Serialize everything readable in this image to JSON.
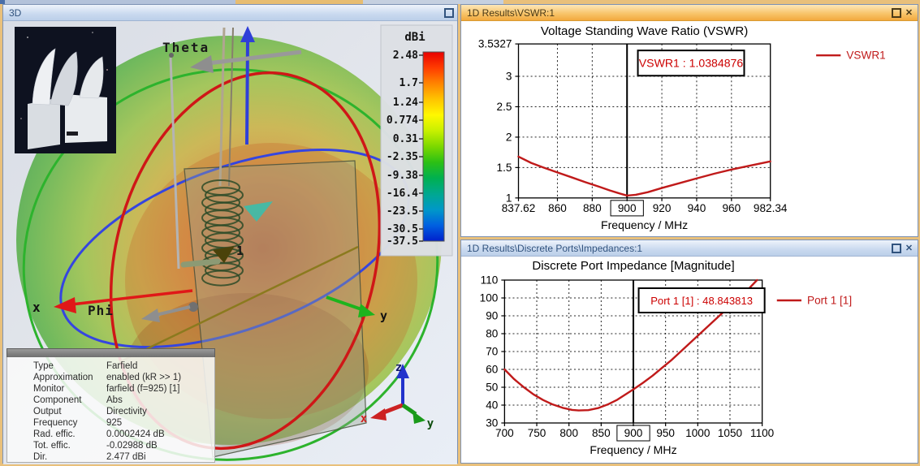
{
  "window": {
    "panel_3d": {
      "title": "3D",
      "colorbar": {
        "unit": "dBi",
        "labels": [
          "2.48",
          "1.7",
          "1.24",
          "0.774",
          "0.31",
          "-2.35",
          "-9.38",
          "-16.4",
          "-23.5",
          "-30.5",
          "-37.5"
        ],
        "gradient": [
          "#e80000",
          "#ff3c00",
          "#ff8400",
          "#ffc400",
          "#fff800",
          "#c8f000",
          "#7cd800",
          "#2cc014",
          "#00b050",
          "#00a890",
          "#0098c8",
          "#0060e0",
          "#0020cc"
        ]
      },
      "axis_labels": {
        "theta": "Theta",
        "phi": "Phi",
        "x": "x",
        "y": "y",
        "triad_z": "z",
        "triad_y": "y",
        "triad_x": "x",
        "port": "1"
      },
      "info": {
        "rows": [
          {
            "label": "Type",
            "value": "Farfield"
          },
          {
            "label": "Approximation",
            "value": "enabled (kR >> 1)"
          },
          {
            "label": "Monitor",
            "value": "farfield (f=925) [1]"
          },
          {
            "label": "Component",
            "value": "Abs"
          },
          {
            "label": "Output",
            "value": "Directivity"
          },
          {
            "label": "Frequency",
            "value": "925"
          },
          {
            "label": "Rad. effic.",
            "value": "0.0002424 dB"
          },
          {
            "label": "Tot. effic.",
            "value": "-0.02988 dB"
          },
          {
            "label": "Dir.",
            "value": "2.477 dBi"
          }
        ]
      }
    },
    "panel_vswr": {
      "title": "1D Results\\VSWR:1"
    },
    "panel_impedance": {
      "title": "1D Results\\Discrete Ports\\Impedances:1"
    }
  },
  "colors": {
    "curve_red": "#c01a1a",
    "annotation_red": "#cc0000",
    "marker_black": "#000000"
  },
  "chart_data": [
    {
      "type": "line",
      "title": "Voltage Standing Wave Ratio (VSWR)",
      "xlabel": "Frequency / MHz",
      "ylabel": "",
      "xlim": [
        837.62,
        982.34
      ],
      "ylim": [
        1,
        3.5327
      ],
      "x_ticks": [
        837.62,
        860,
        880,
        900,
        920,
        940,
        960,
        982.34
      ],
      "x_tick_labels": [
        "837.62",
        "860",
        "880",
        "900",
        "920",
        "940",
        "960",
        "982.34"
      ],
      "boxed_tick": "900",
      "y_ticks": [
        1,
        1.5,
        2,
        2.5,
        3,
        3.5327
      ],
      "y_tick_labels": [
        "1",
        "1.5",
        "2",
        "2.5",
        "3",
        "3.5327"
      ],
      "marker_x": 900,
      "grid": "dashed",
      "legend_position": "right",
      "annotation": "VSWR1 : 1.0384876",
      "series": [
        {
          "name": "VSWR1",
          "x": [
            837.62,
            845,
            852,
            860,
            868,
            876,
            884,
            890,
            895,
            900,
            905,
            912,
            920,
            930,
            940,
            950,
            960,
            970,
            982.34
          ],
          "y": [
            1.68,
            1.575,
            1.5,
            1.42,
            1.34,
            1.26,
            1.185,
            1.125,
            1.08,
            1.0385,
            1.052,
            1.095,
            1.163,
            1.243,
            1.322,
            1.398,
            1.468,
            1.528,
            1.6
          ]
        }
      ]
    },
    {
      "type": "line",
      "title": "Discrete Port Impedance [Magnitude]",
      "xlabel": "Frequency / MHz",
      "ylabel": "",
      "xlim": [
        700,
        1100
      ],
      "ylim": [
        30,
        110
      ],
      "x_ticks": [
        700,
        750,
        800,
        850,
        900,
        950,
        1000,
        1050,
        1100
      ],
      "x_tick_labels": [
        "700",
        "750",
        "800",
        "850",
        "900",
        "950",
        "1000",
        "1050",
        "1100"
      ],
      "boxed_tick": "900",
      "y_ticks": [
        30,
        40,
        50,
        60,
        70,
        80,
        90,
        100,
        110
      ],
      "y_tick_labels": [
        "30",
        "40",
        "50",
        "60",
        "70",
        "80",
        "90",
        "100",
        "110"
      ],
      "marker_x": 900,
      "grid": "dashed",
      "legend_position": "right",
      "annotation": "Port 1 [1] : 48.843813",
      "series": [
        {
          "name": "Port 1 [1]",
          "x": [
            700,
            715,
            730,
            745,
            760,
            775,
            790,
            805,
            815,
            830,
            845,
            860,
            875,
            890,
            900,
            915,
            930,
            945,
            960,
            975,
            990,
            1005,
            1020,
            1035,
            1050,
            1065,
            1080,
            1092
          ],
          "y": [
            60,
            54.5,
            50,
            46,
            42.8,
            40.3,
            38.5,
            37.3,
            37,
            37.2,
            38.3,
            40.3,
            43,
            46.5,
            48.84,
            52.5,
            56.5,
            61,
            65.5,
            70.5,
            75.5,
            80.5,
            85.5,
            90.5,
            95.5,
            100.5,
            105.5,
            110
          ]
        }
      ]
    }
  ]
}
